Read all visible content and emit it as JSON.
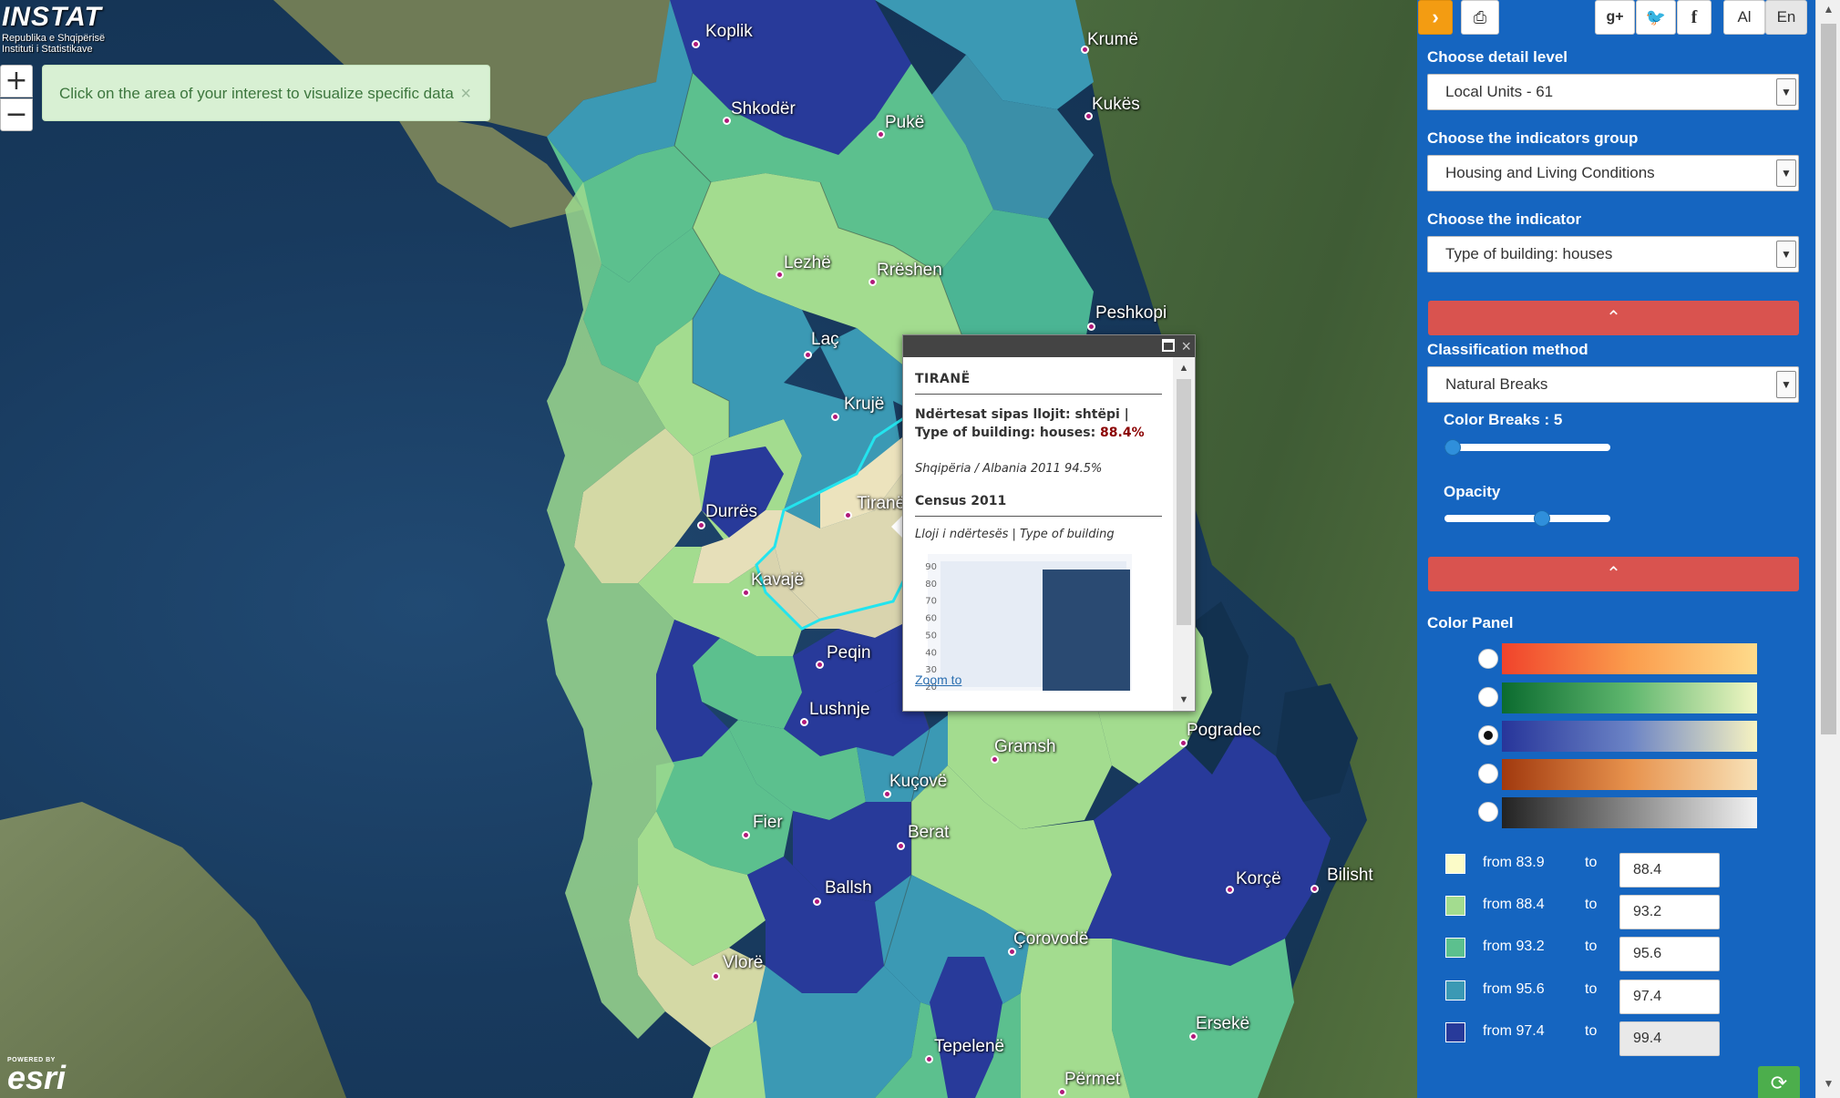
{
  "logo": {
    "brand": "INSTAT",
    "line1": "Republika e Shqipërisë",
    "line2": "Instituti i Statistikave"
  },
  "map": {
    "zoom_in": "+",
    "zoom_out": "−",
    "alert_text": "Click on the area of your interest to visualize specific data",
    "alert_close": "×",
    "esri_powered": "POWERED BY",
    "esri_brand": "esri",
    "cities": [
      "Koplik",
      "Krumë",
      "Kukës",
      "Shkodër",
      "Pukë",
      "Lezhë",
      "Rrëshen",
      "Peshkopi",
      "Laç",
      "Krujë",
      "Durrës",
      "Tiranë",
      "Kavajë",
      "Peqin",
      "Lushnje",
      "Pogradec",
      "Gramsh",
      "Kuçovë",
      "Fier",
      "Berat",
      "Korçë",
      "Bilisht",
      "Ballsh",
      "Çorovodë",
      "Vlorë",
      "Ersekë",
      "Tepelenë",
      "Përmet"
    ]
  },
  "popup": {
    "title": "TIRANË",
    "indicator_label": "Ndërtesat sipas llojit: shtëpi | Type of building: houses: ",
    "indicator_value": "88.4%",
    "albania_line": "Shqipëria / Albania 2011 94.5%",
    "census_title": "Census 2011",
    "type_label": "Lloji i ndërtesës | Type of building",
    "zoom_link": "Zoom to",
    "chart_data": {
      "type": "bar",
      "categories": [
        ""
      ],
      "values": [
        88.4
      ],
      "yticks": [
        "90",
        "80",
        "70",
        "60",
        "50",
        "40",
        "30",
        "20"
      ],
      "ylim": [
        20,
        90
      ]
    }
  },
  "toolbar": {
    "toggle": "›",
    "print": "⎙",
    "gplus": "g+",
    "twitter": "🐦",
    "facebook": "f",
    "lang_al": "Al",
    "lang_en": "En"
  },
  "sidebar": {
    "detail_label": "Choose detail level",
    "detail_value": "Local Units - 61",
    "group_label": "Choose the indicators group",
    "group_value": "Housing and Living Conditions",
    "indicator_label": "Choose the indicator",
    "indicator_value": "Type of building: houses",
    "collapse_icon": "⌃",
    "classification_label": "Classification method",
    "classification_value": "Natural Breaks",
    "color_breaks_label": "Color Breaks : 5",
    "color_breaks_value": 5,
    "opacity_label": "Opacity",
    "opacity_value": 0.6,
    "color_panel_label": "Color Panel",
    "color_panel_selected": 2,
    "breaks": [
      {
        "from": "from 83.9",
        "to_label": "to",
        "to": "88.4",
        "color": "#fbfbc8"
      },
      {
        "from": "from 88.4",
        "to_label": "to",
        "to": "93.2",
        "color": "#a3dc8f"
      },
      {
        "from": "from 93.2",
        "to_label": "to",
        "to": "95.6",
        "color": "#5cc08e"
      },
      {
        "from": "from 95.6",
        "to_label": "to",
        "to": "97.4",
        "color": "#3b99b4"
      },
      {
        "from": "from 97.4",
        "to_label": "to",
        "to": "99.4",
        "color": "#283a9a"
      }
    ],
    "refresh_icon": "⟳"
  },
  "colors": {
    "sidebar_bg": "#1565c0",
    "accent_orange": "#f39c12",
    "red_bar": "#d9534f",
    "green_button": "#4cae4c"
  }
}
